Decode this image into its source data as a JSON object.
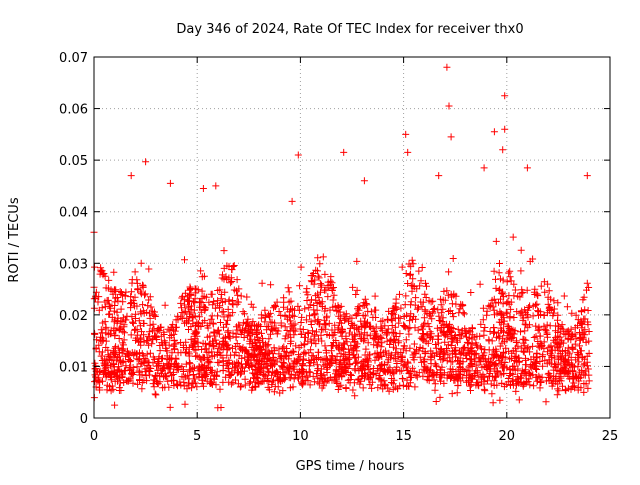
{
  "chart_data": {
    "type": "scatter",
    "title": "Day 346 of 2024, Rate Of TEC Index for receiver thx0",
    "xlabel": "GPS time / hours",
    "ylabel": "ROTI / TECUs",
    "xlim": [
      0,
      25
    ],
    "ylim": [
      0,
      0.07
    ],
    "xticks": [
      0,
      5,
      10,
      15,
      20,
      25
    ],
    "yticks": [
      0,
      0.01,
      0.02,
      0.03,
      0.04,
      0.05,
      0.06,
      0.07
    ],
    "xtick_labels": [
      "0",
      "5",
      "10",
      "15",
      "20",
      "25"
    ],
    "ytick_labels": [
      "0",
      "0.01",
      "0.02",
      "0.03",
      "0.04",
      "0.05",
      "0.06",
      "0.07"
    ],
    "grid": true,
    "marker": "+",
    "series_color": "#ff0000",
    "data_x_range": [
      0,
      24
    ],
    "typical_band": [
      0.005,
      0.03
    ],
    "notable_points": [
      {
        "x": 0.0,
        "y": 0.036
      },
      {
        "x": 1.0,
        "y": 0.0025
      },
      {
        "x": 1.8,
        "y": 0.047
      },
      {
        "x": 2.5,
        "y": 0.0497
      },
      {
        "x": 3.7,
        "y": 0.0455
      },
      {
        "x": 5.3,
        "y": 0.0445
      },
      {
        "x": 5.9,
        "y": 0.045
      },
      {
        "x": 6.0,
        "y": 0.002
      },
      {
        "x": 9.9,
        "y": 0.051
      },
      {
        "x": 9.6,
        "y": 0.042
      },
      {
        "x": 12.1,
        "y": 0.0515
      },
      {
        "x": 13.1,
        "y": 0.046
      },
      {
        "x": 15.1,
        "y": 0.055
      },
      {
        "x": 15.2,
        "y": 0.0515
      },
      {
        "x": 16.7,
        "y": 0.047
      },
      {
        "x": 17.1,
        "y": 0.068
      },
      {
        "x": 17.2,
        "y": 0.0605
      },
      {
        "x": 17.3,
        "y": 0.0545
      },
      {
        "x": 18.9,
        "y": 0.0485
      },
      {
        "x": 19.4,
        "y": 0.0555
      },
      {
        "x": 19.9,
        "y": 0.0625
      },
      {
        "x": 19.9,
        "y": 0.056
      },
      {
        "x": 19.8,
        "y": 0.052
      },
      {
        "x": 21.0,
        "y": 0.0485
      },
      {
        "x": 23.9,
        "y": 0.047
      }
    ]
  }
}
